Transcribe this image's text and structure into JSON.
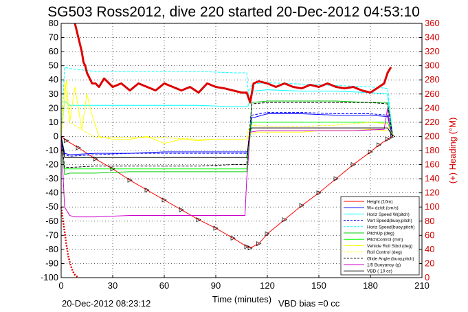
{
  "chart_data": {
    "type": "line",
    "title": "SG503 Ross2012, dive 220 started 20-Dec-2012 04:53:10",
    "xlabel": "Time (minutes)",
    "ylabel_right": "(+) Heading (°M)",
    "footer_left": "20-Dec-2012 08:23:12",
    "footer_right": "VBD bias =0 cc",
    "xlim": [
      0,
      210
    ],
    "ylim": [
      -100,
      80
    ],
    "ylim_right": [
      0,
      360
    ],
    "x_ticks": [
      "0",
      "30",
      "60",
      "90",
      "120",
      "150",
      "180",
      "210"
    ],
    "y_ticks": [
      "80",
      "70",
      "60",
      "50",
      "40",
      "30",
      "20",
      "10",
      "0",
      "-10",
      "-20",
      "-30",
      "-40",
      "-50",
      "-60",
      "-70",
      "-80",
      "-90",
      "-100"
    ],
    "y_ticks_right": [
      "360",
      "340",
      "320",
      "300",
      "280",
      "260",
      "240",
      "220",
      "200",
      "180",
      "160",
      "140",
      "120",
      "100",
      "80",
      "60",
      "40",
      "20",
      "0"
    ],
    "grid": true,
    "legend_position": "bottom-right",
    "series": [
      {
        "name": "Height (10m)",
        "color": "#ff0000",
        "style": "solid",
        "x": [
          0,
          3,
          10,
          20,
          30,
          40,
          50,
          60,
          70,
          80,
          90,
          100,
          108,
          110,
          115,
          120,
          130,
          140,
          150,
          160,
          170,
          180,
          185,
          190,
          193
        ],
        "y": [
          0,
          -3,
          -8,
          -16,
          -23,
          -31,
          -38,
          -45,
          -52,
          -59,
          -65,
          -72,
          -78,
          -79,
          -76,
          -69,
          -59,
          -49,
          -40,
          -30,
          -20,
          -11,
          -6,
          -2,
          0
        ]
      },
      {
        "name": "W= dz/dt (cm/s)",
        "color": "#0000ff",
        "style": "solid",
        "x": [
          0,
          2,
          5,
          20,
          40,
          60,
          80,
          100,
          108,
          109,
          111,
          120,
          140,
          160,
          180,
          190,
          193
        ],
        "y": [
          0,
          -12,
          -13,
          -12,
          -12,
          -11,
          -11,
          -11,
          -11,
          -9,
          13,
          16,
          16,
          15,
          15,
          14,
          0
        ]
      },
      {
        "name": "Horiz Speed W(pitch)",
        "color": "#00ffff",
        "style": "solid",
        "x": [
          0,
          2,
          5,
          20,
          40,
          60,
          80,
          100,
          108,
          109,
          111,
          120,
          140,
          160,
          180,
          190,
          193
        ],
        "y": [
          0,
          25,
          22,
          22,
          22,
          22,
          22,
          21,
          21,
          22,
          32,
          33,
          32,
          32,
          31,
          30,
          0
        ]
      },
      {
        "name": "Vert Speed(buoy,pitch)",
        "color": "#0000ff",
        "style": "dashed",
        "x": [
          0,
          2,
          5,
          20,
          40,
          60,
          80,
          100,
          108,
          109,
          111,
          120,
          140,
          160,
          180,
          190,
          193
        ],
        "y": [
          0,
          -13,
          -14,
          -13,
          -12,
          -12,
          -12,
          -12,
          -12,
          -10,
          15,
          17,
          17,
          16,
          16,
          15,
          0
        ]
      },
      {
        "name": "Horiz Speed(buoy,pitch)",
        "color": "#00ffff",
        "style": "dashed",
        "x": [
          0,
          2,
          5,
          20,
          40,
          60,
          80,
          100,
          108,
          109,
          111,
          120,
          140,
          160,
          180,
          190,
          193
        ],
        "y": [
          0,
          49,
          48,
          46,
          46,
          46,
          46,
          45,
          45,
          30,
          37,
          38,
          37,
          36,
          35,
          34,
          0
        ]
      },
      {
        "name": "PitchUp (deg)",
        "color": "#00cc00",
        "style": "solid",
        "x": [
          0,
          2,
          5,
          20,
          40,
          60,
          80,
          100,
          108,
          109,
          111,
          120,
          140,
          160,
          180,
          190,
          193
        ],
        "y": [
          0,
          -27,
          -26,
          -26,
          -25,
          -25,
          -25,
          -25,
          -25,
          -10,
          24,
          25,
          25,
          25,
          24,
          24,
          0
        ]
      },
      {
        "name": "PitchControl (mm)",
        "color": "#00ff00",
        "style": "solid",
        "x": [
          0,
          2,
          5,
          20,
          40,
          60,
          80,
          100,
          108,
          109,
          111,
          120,
          140,
          160,
          180,
          190,
          193
        ],
        "y": [
          0,
          -23,
          -23,
          -23,
          -23,
          -23,
          -23,
          -23,
          -23,
          -10,
          10,
          10,
          10,
          10,
          10,
          10,
          0
        ]
      },
      {
        "name": "Vehicle Roll Stbd (deg)",
        "color": "#ffff00",
        "style": "solid",
        "x": [
          0,
          3,
          5,
          8,
          12,
          15,
          18,
          22,
          30,
          40,
          50,
          60,
          70,
          80,
          90,
          100,
          108,
          110,
          115,
          120,
          130,
          140,
          150,
          160,
          170,
          180,
          190
        ],
        "y": [
          0,
          40,
          10,
          35,
          5,
          30,
          15,
          0,
          -2,
          -2,
          0,
          -5,
          -2,
          -3,
          -2,
          -2,
          -2,
          2,
          3,
          3,
          3,
          3,
          4,
          4,
          4,
          5,
          4
        ]
      },
      {
        "name": "Roll Control (deg)",
        "color": "#ffff00",
        "style": "dashed",
        "x": [
          0,
          2,
          5,
          20,
          40,
          60,
          80,
          100,
          108,
          109,
          111,
          120,
          140,
          160,
          180,
          190,
          193
        ],
        "y": [
          0,
          38,
          10,
          -1,
          -1,
          -1,
          -2,
          -2,
          -2,
          5,
          8,
          7,
          7,
          8,
          10,
          9,
          0
        ]
      },
      {
        "name": "Glide Angle (buoy,pitch)",
        "color": "#000000",
        "style": "dashed",
        "x": [
          0,
          2,
          5,
          20,
          40,
          60,
          80,
          100,
          108,
          109,
          111,
          120,
          140,
          160,
          180,
          190,
          193
        ],
        "y": [
          0,
          -22,
          -22,
          -21,
          -21,
          -21,
          -21,
          -20,
          -20,
          -5,
          23,
          24,
          24,
          24,
          24,
          23,
          0
        ]
      },
      {
        "name": "1/5 Buoyancy (g)",
        "color": "#cc00cc",
        "style": "solid",
        "x": [
          0,
          2,
          5,
          8,
          20,
          40,
          60,
          80,
          100,
          107,
          108,
          109,
          110,
          115,
          140,
          170,
          188,
          190,
          192
        ],
        "y": [
          0,
          -50,
          -56,
          -57,
          -57,
          -56,
          -56,
          -56,
          -56,
          -56,
          -30,
          -15,
          3,
          4,
          4,
          4,
          5,
          20,
          0
        ]
      },
      {
        "name": "VBD ( 10 cc)",
        "color": "#000000",
        "style": "solid",
        "x": [
          0,
          2,
          5,
          20,
          40,
          60,
          80,
          100,
          108,
          109,
          110,
          111,
          120,
          140,
          160,
          180,
          190,
          193
        ],
        "y": [
          0,
          -15,
          -15,
          -15,
          -15,
          -15,
          -15,
          -15,
          -15,
          -5,
          5,
          6,
          6,
          6,
          6,
          6,
          6,
          0
        ]
      }
    ],
    "heading": {
      "color": "#dd0000",
      "x": [
        8,
        9,
        10,
        11,
        12,
        13,
        14,
        15,
        16,
        18,
        20,
        22,
        25,
        30,
        35,
        40,
        45,
        50,
        55,
        60,
        65,
        70,
        75,
        80,
        85,
        90,
        95,
        100,
        105,
        108,
        109,
        110,
        112,
        115,
        120,
        125,
        130,
        135,
        140,
        145,
        150,
        155,
        160,
        165,
        170,
        175,
        180,
        185,
        188,
        190,
        192
      ],
      "y": [
        360,
        350,
        340,
        330,
        320,
        305,
        300,
        290,
        285,
        275,
        275,
        270,
        282,
        270,
        275,
        265,
        275,
        270,
        265,
        275,
        270,
        265,
        270,
        262,
        275,
        270,
        268,
        265,
        262,
        262,
        255,
        248,
        275,
        278,
        275,
        270,
        275,
        270,
        268,
        273,
        270,
        275,
        270,
        268,
        270,
        265,
        262,
        270,
        275,
        290,
        298
      ]
    },
    "heading_start": {
      "x": [
        0,
        1,
        2,
        3,
        4,
        5,
        6,
        7,
        8,
        9,
        10
      ],
      "y": [
        100,
        82,
        65,
        48,
        32,
        22,
        14,
        8,
        4,
        2,
        0
      ]
    }
  },
  "legend_title_hidden": ""
}
